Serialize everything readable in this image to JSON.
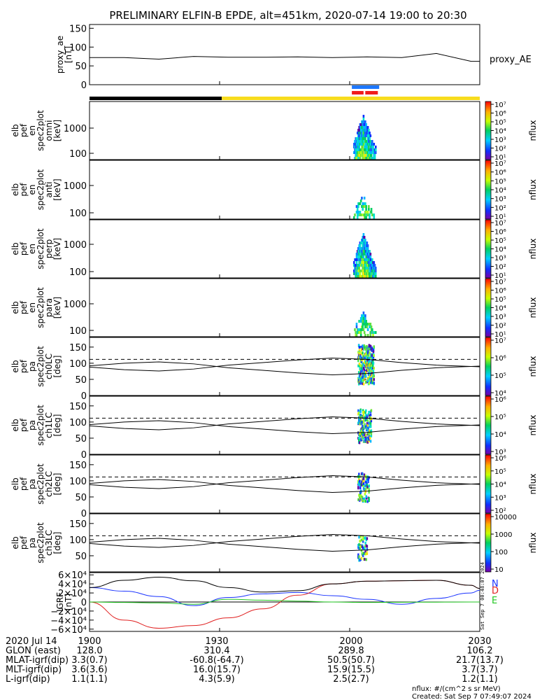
{
  "title": "PRELIMINARY ELFIN-B EPDE, alt=451km, 2020-07-14 19:00 to 20:30",
  "colors": {
    "night_bar": "#000000",
    "day_bar": "#f7dc1e",
    "science_blue": "#1e78ff",
    "science_red": "#f01e1e",
    "e_component": "#22c722",
    "d_component": "#e02020",
    "n_component": "#1a33ff"
  },
  "time_axis": {
    "range_minutes": [
      0,
      90
    ],
    "ticks": [
      "1900",
      "1930",
      "2000",
      "2030"
    ],
    "tick_minutes": [
      0,
      30,
      60,
      90
    ]
  },
  "panels": [
    {
      "ylabel": [
        "proxy_ae",
        "[nT]"
      ],
      "yticks": [
        "150",
        "100",
        "50",
        "0"
      ],
      "series_label": "proxy_AE"
    },
    {
      "ylabel": [
        "elb",
        "pef",
        "en",
        "spec2plot",
        "omni",
        "[keV]"
      ],
      "yticks": [
        "1000",
        "100"
      ],
      "cb_ticks": [
        "10⁷",
        "10⁶",
        "10⁵",
        "10⁴",
        "10³",
        "10²",
        "10¹"
      ],
      "cb_label": "nflux"
    },
    {
      "ylabel": [
        "elb",
        "pef",
        "en",
        "spec2plot",
        "anti",
        "[keV]"
      ],
      "yticks": [
        "1000",
        "100"
      ],
      "cb_ticks": [
        "10⁷",
        "10⁶",
        "10⁵",
        "10⁴",
        "10³",
        "10²",
        "10¹"
      ],
      "cb_label": "nflux"
    },
    {
      "ylabel": [
        "elb",
        "pef",
        "en",
        "spec2plot",
        "perp",
        "[keV]"
      ],
      "yticks": [
        "1000",
        "100"
      ],
      "cb_ticks": [
        "10⁷",
        "10⁶",
        "10⁵",
        "10⁴",
        "10³",
        "10²",
        "10¹"
      ],
      "cb_label": "nflux"
    },
    {
      "ylabel": [
        "elb",
        "pef",
        "en",
        "spec2plot",
        "para",
        "[keV]"
      ],
      "yticks": [
        "1000",
        "100"
      ],
      "cb_ticks": [
        "10⁷",
        "10⁶",
        "10⁵",
        "10⁴",
        "10³",
        "10²",
        "10¹"
      ],
      "cb_label": "nflux"
    },
    {
      "ylabel": [
        "elb",
        "pef",
        "pa",
        "spec2plot",
        "ch0LC",
        "[deg]"
      ],
      "yticks": [
        "150",
        "100",
        "50",
        "0"
      ],
      "cb_ticks": [
        "10⁷",
        "10⁶",
        "10⁵",
        "10⁴"
      ],
      "cb_label": "nflux"
    },
    {
      "ylabel": [
        "elb",
        "pef",
        "pa",
        "spec2plot",
        "ch1LC",
        "[deg]"
      ],
      "yticks": [
        "150",
        "100",
        "50",
        "0"
      ],
      "cb_ticks": [
        "10⁶",
        "10⁵",
        "10⁴",
        "10³"
      ],
      "cb_label": "nflux"
    },
    {
      "ylabel": [
        "elb",
        "pef",
        "pa",
        "spec2plot",
        "ch2LC",
        "[deg]"
      ],
      "yticks": [
        "150",
        "100",
        "50",
        "0"
      ],
      "cb_ticks": [
        "10⁶",
        "10⁵",
        "10⁴",
        "10³",
        "10²"
      ],
      "cb_label": "nflux"
    },
    {
      "ylabel": [
        "elb",
        "pef",
        "pa",
        "spec2plot",
        "ch3LC",
        "[deg]"
      ],
      "yticks": [
        "150",
        "100",
        "50"
      ],
      "cb_ticks": [
        "10000",
        "1000",
        "100",
        "10"
      ],
      "cb_label": "nflux"
    },
    {
      "ylabel": [
        "IGRF",
        "[nT]"
      ],
      "yticks": [
        "6×10⁴",
        "4×10⁴",
        "2×10⁴",
        "0",
        "−2×10⁴",
        "−4×10⁴",
        "−6×10⁴"
      ],
      "legend": [
        "N",
        "D",
        "E"
      ]
    }
  ],
  "chart_data": {
    "type": "line",
    "x_minutes": [
      0,
      8,
      16,
      24,
      32,
      40,
      48,
      56,
      64,
      72,
      80,
      88,
      90
    ],
    "series": [
      {
        "name": "proxy_AE",
        "values": [
          72,
          72,
          68,
          75,
          73,
          73,
          74,
          72,
          74,
          72,
          83,
          62,
          62
        ]
      },
      {
        "name": "N",
        "values": [
          32000,
          24000,
          12000,
          -8000,
          10000,
          18000,
          21000,
          14000,
          6000,
          -5000,
          8000,
          20000,
          26000
        ]
      },
      {
        "name": "D",
        "values": [
          0,
          -40000,
          -58000,
          -52000,
          -35000,
          -15000,
          15000,
          40000,
          46000,
          47000,
          48000,
          37000,
          30000
        ]
      },
      {
        "name": "E",
        "values": [
          0,
          -1000,
          -2000,
          -5000,
          6000,
          4000,
          2000,
          0,
          -1000,
          -500,
          -300,
          0,
          0
        ]
      },
      {
        "name": "",
        "values": [
          32000,
          48000,
          55000,
          47000,
          32000,
          22000,
          25000,
          40000,
          46000,
          47000,
          48000,
          37000,
          30000
        ]
      }
    ],
    "loss_cone_line": [
      92,
      100,
      104,
      98,
      86,
      78,
      70,
      64,
      68,
      78,
      86,
      90,
      91
    ],
    "antiloss_cone_line": 112,
    "spectrogram_window_minutes": [
      60.5,
      66.5
    ]
  },
  "footer": {
    "rows": [
      {
        "label": "2020 Jul 14",
        "values": [
          "1900",
          "1930",
          "2000",
          "2030"
        ]
      },
      {
        "label": "GLON (east)",
        "values": [
          "128.0",
          "310.4",
          "289.8",
          "106.2"
        ]
      },
      {
        "label": "MLAT-igrf(dip)",
        "values": [
          "3.3(0.7)",
          "-60.8(-64.7)",
          "50.5(50.7)",
          "21.7(13.7)"
        ]
      },
      {
        "label": "MLT-igrf(dip)",
        "values": [
          "3.6(3.6)",
          "16.0(15.7)",
          "15.9(15.5)",
          "3.7(3.7)"
        ]
      },
      {
        "label": "L-igrf(dip)",
        "values": [
          "1.1(1.1)",
          "4.3(5.9)",
          "2.5(2.7)",
          "1.2(1.1)"
        ]
      }
    ],
    "units_note": "nflux: #/(cm^2 s sr MeV)",
    "created": "Created: Sat Sep  7 07:49:07 2024",
    "side_stamp": "Sat Sep  7 00:48:07 2024"
  }
}
